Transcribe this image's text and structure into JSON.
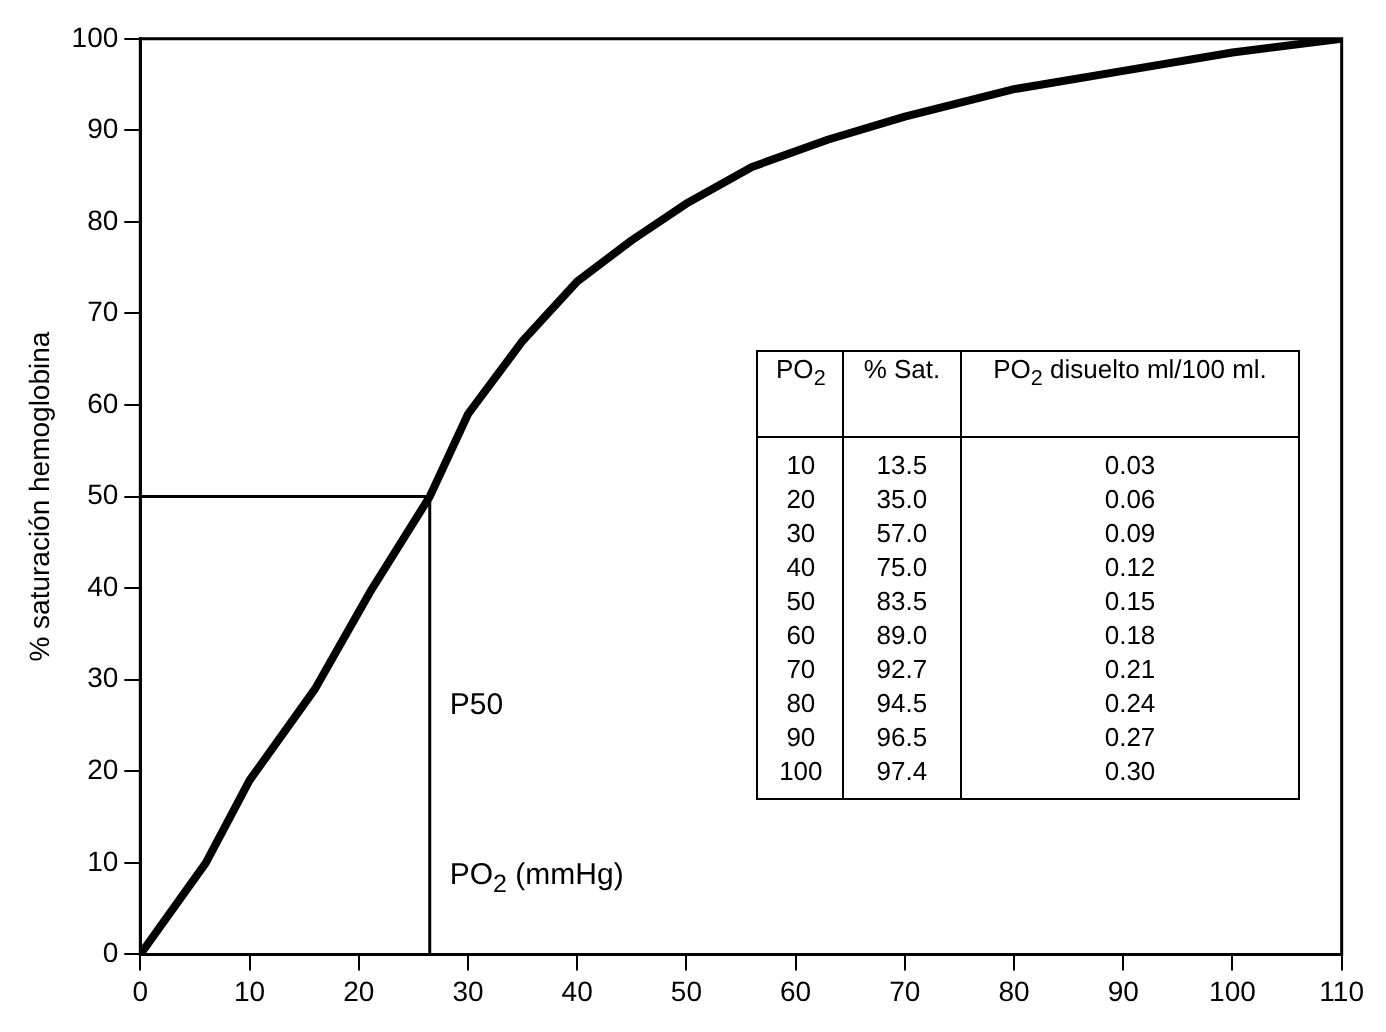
{
  "chart_data": {
    "type": "line",
    "xlabel": "PO$_{2}$ (mmHg)",
    "ylabel": "% saturación hemoglobina",
    "x": [
      0,
      6,
      10,
      16,
      21,
      26.5,
      30,
      35,
      40,
      45,
      50,
      56,
      63,
      70,
      80,
      90,
      100,
      110
    ],
    "series": [
      {
        "color": "#000000",
        "values": [
          0,
          10,
          19,
          29,
          39.5,
          50,
          59,
          67,
          73.5,
          78,
          82,
          86,
          89,
          91.5,
          94.5,
          96.5,
          98.5,
          100
        ]
      }
    ],
    "xlim": [
      0,
      110
    ],
    "xticks": [
      0,
      10,
      20,
      30,
      40,
      50,
      60,
      70,
      80,
      90,
      100,
      110
    ],
    "ylim": [
      0,
      100
    ],
    "yticks": [
      0,
      10,
      20,
      30,
      40,
      50,
      60,
      70,
      80,
      90,
      100
    ],
    "ref_lines": [
      {
        "axis": "x",
        "value": 26.5,
        "label": "P50",
        "color": "#000000"
      },
      {
        "axis": "y",
        "value": 50,
        "color": "#000000"
      }
    ],
    "annotations": [
      "PO$_{2}$",
      "% Sat.",
      "PO$_{2}$ disuelto ml/100 ml.",
      "10",
      "13.5",
      "0.03",
      "20",
      "35.0",
      "0.06",
      "30",
      "57.0",
      "0.09",
      "40",
      "75.0",
      "0.12",
      "50",
      "83.5",
      "0.15",
      "60",
      "89.0",
      "0.18",
      "70",
      "92.7",
      "0.21",
      "80",
      "94.5",
      "0.24",
      "90",
      "96.5",
      "0.27",
      "100",
      "97.4",
      "0.30"
    ],
    "grid": false,
    "legend": false,
    "marker": "none",
    "line_style": "solid"
  }
}
